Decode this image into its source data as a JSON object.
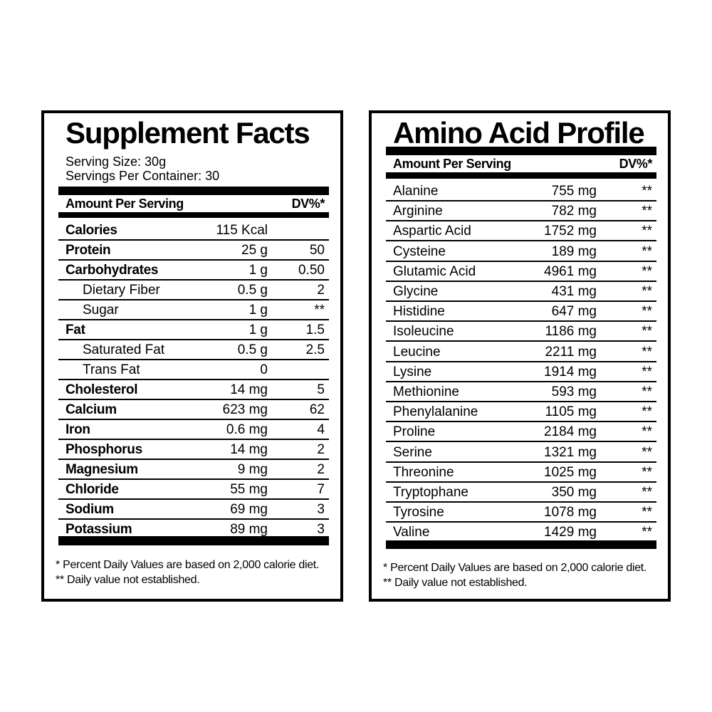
{
  "supplement": {
    "title": "Supplement Facts",
    "serving_size": "Serving Size: 30g",
    "servings_per_container": "Servings Per Container: 30",
    "header_amount": "Amount Per Serving",
    "header_dv": "DV%*",
    "rows": [
      {
        "name": "Calories",
        "amount": "115 Kcal",
        "dv": "",
        "bold": true
      },
      {
        "name": "Protein",
        "amount": "25 g",
        "dv": "50",
        "bold": true
      },
      {
        "name": "Carbohydrates",
        "amount": "1 g",
        "dv": "0.50",
        "bold": true
      },
      {
        "name": "Dietary Fiber",
        "amount": "0.5 g",
        "dv": "2",
        "indent": true
      },
      {
        "name": "Sugar",
        "amount": "1 g",
        "dv": "**",
        "indent": true
      },
      {
        "name": "Fat",
        "amount": "1 g",
        "dv": "1.5",
        "bold": true
      },
      {
        "name": "Saturated Fat",
        "amount": "0.5 g",
        "dv": "2.5",
        "indent": true
      },
      {
        "name": "Trans Fat",
        "amount": "0",
        "dv": "",
        "indent": true
      },
      {
        "name": "Cholesterol",
        "amount": "14 mg",
        "dv": "5",
        "bold": true
      },
      {
        "name": "Calcium",
        "amount": "623 mg",
        "dv": "62",
        "bold": true
      },
      {
        "name": "Iron",
        "amount": "0.6 mg",
        "dv": "4",
        "bold": true
      },
      {
        "name": "Phosphorus",
        "amount": "14 mg",
        "dv": "2",
        "bold": true
      },
      {
        "name": "Magnesium",
        "amount": "9 mg",
        "dv": "2",
        "bold": true
      },
      {
        "name": "Chloride",
        "amount": "55 mg",
        "dv": "7",
        "bold": true
      },
      {
        "name": "Sodium",
        "amount": "69 mg",
        "dv": "3",
        "bold": true
      },
      {
        "name": "Potassium",
        "amount": "89 mg",
        "dv": "3",
        "bold": true
      }
    ],
    "footnote_1": "* Percent Daily Values are based on 2,000 calorie diet.",
    "footnote_2": "** Daily value not established."
  },
  "amino": {
    "title": "Amino Acid Profile",
    "header_amount": "Amount Per Serving",
    "header_dv": "DV%*",
    "rows": [
      {
        "name": "Alanine",
        "amount": "755 mg",
        "dv": "**"
      },
      {
        "name": "Arginine",
        "amount": "782 mg",
        "dv": "**"
      },
      {
        "name": "Aspartic Acid",
        "amount": "1752 mg",
        "dv": "**"
      },
      {
        "name": "Cysteine",
        "amount": "189 mg",
        "dv": "**"
      },
      {
        "name": "Glutamic Acid",
        "amount": "4961 mg",
        "dv": "**"
      },
      {
        "name": "Glycine",
        "amount": "431 mg",
        "dv": "**"
      },
      {
        "name": "Histidine",
        "amount": "647 mg",
        "dv": "**"
      },
      {
        "name": "Isoleucine",
        "amount": "1186 mg",
        "dv": "**"
      },
      {
        "name": "Leucine",
        "amount": "2211 mg",
        "dv": "**"
      },
      {
        "name": "Lysine",
        "amount": "1914 mg",
        "dv": "**"
      },
      {
        "name": "Methionine",
        "amount": "593 mg",
        "dv": "**"
      },
      {
        "name": "Phenylalanine",
        "amount": "1105 mg",
        "dv": "**"
      },
      {
        "name": "Proline",
        "amount": "2184 mg",
        "dv": "**"
      },
      {
        "name": "Serine",
        "amount": "1321 mg",
        "dv": "**"
      },
      {
        "name": "Threonine",
        "amount": "1025 mg",
        "dv": "**"
      },
      {
        "name": "Tryptophane",
        "amount": "350 mg",
        "dv": "**"
      },
      {
        "name": "Tyrosine",
        "amount": "1078 mg",
        "dv": "**"
      },
      {
        "name": "Valine",
        "amount": "1429 mg",
        "dv": "**"
      }
    ],
    "footnote_1": "* Percent Daily Values are based on 2,000 calorie diet.",
    "footnote_2": "** Daily value not established."
  }
}
